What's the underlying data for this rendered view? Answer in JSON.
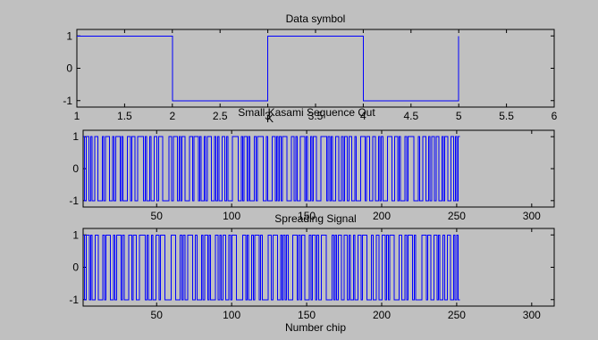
{
  "window": {
    "background": "#c0c0c0"
  },
  "chart_data": [
    {
      "type": "line",
      "step": true,
      "title": "Data symbol",
      "xlabel": "K",
      "ylabel": "",
      "xlim": [
        1,
        6
      ],
      "ylim": [
        -1.2,
        1.2
      ],
      "xticks": [
        1,
        1.5,
        2,
        2.5,
        3,
        3.5,
        4,
        4.5,
        5,
        5.5,
        6
      ],
      "xtick_labels": [
        "1",
        "1.5",
        "2",
        "2.5",
        "3",
        "3.5",
        "4",
        "4.5",
        "5",
        "5.5",
        "6"
      ],
      "yticks": [
        -1,
        0,
        1
      ],
      "ytick_labels": [
        "-1",
        "0",
        "1"
      ],
      "grid": false,
      "color": "#0000ff",
      "x": [
        1,
        2,
        2,
        3,
        3,
        4,
        4,
        5,
        5
      ],
      "y": [
        1,
        1,
        -1,
        -1,
        1,
        1,
        -1,
        -1,
        1
      ]
    },
    {
      "type": "line",
      "step": true,
      "title": "Small Kasami Sequence Out",
      "xlabel": "",
      "ylabel": "",
      "xlim": [
        1,
        315
      ],
      "ylim": [
        -1.2,
        1.2
      ],
      "xticks": [
        50,
        100,
        150,
        200,
        250,
        300
      ],
      "xtick_labels": [
        "50",
        "100",
        "150",
        "200",
        "250",
        "300"
      ],
      "yticks": [
        -1,
        0,
        1
      ],
      "ytick_labels": [
        "-1",
        "0",
        "1"
      ],
      "grid": false,
      "color": "#0000ff",
      "x_end": 252,
      "values": [
        1,
        -1,
        1,
        1,
        -1,
        1,
        -1,
        -1,
        1,
        1,
        -1,
        -1,
        -1,
        1,
        -1,
        1,
        1,
        1,
        -1,
        -1,
        1,
        -1,
        1,
        1,
        1,
        -1,
        1,
        -1,
        -1,
        -1,
        1,
        1,
        -1,
        1,
        1,
        -1,
        -1,
        1,
        1,
        1,
        1,
        -1,
        1,
        -1,
        -1,
        1,
        -1,
        -1,
        1,
        1,
        -1,
        1,
        1,
        1,
        -1,
        -1,
        -1,
        -1,
        1,
        1,
        -1,
        1,
        1,
        1,
        -1,
        1,
        -1,
        1,
        1,
        -1,
        -1,
        -1,
        1,
        1,
        -1,
        1,
        1,
        1,
        -1,
        1,
        -1,
        -1,
        1,
        -1,
        1,
        1,
        1,
        -1,
        -1,
        1,
        -1,
        1,
        -1,
        -1,
        1,
        1,
        -1,
        1,
        -1,
        -1,
        -1,
        1,
        1,
        1,
        1,
        -1,
        -1,
        1,
        -1,
        1,
        1,
        -1,
        1,
        -1,
        -1,
        -1,
        1,
        -1,
        1,
        1,
        1,
        1,
        -1,
        -1,
        1,
        -1,
        -1,
        -1,
        1,
        1,
        -1,
        1,
        -1,
        1,
        -1,
        1,
        1,
        1,
        -1,
        -1,
        -1,
        1,
        1,
        -1,
        1,
        -1,
        -1,
        1,
        1,
        1,
        -1,
        1,
        -1,
        -1,
        1,
        -1,
        1,
        1,
        -1,
        -1,
        -1,
        1,
        1,
        1,
        1,
        -1,
        1,
        -1,
        1,
        -1,
        -1,
        1,
        1,
        -1,
        -1,
        1,
        -1,
        1,
        1,
        -1,
        1,
        1,
        -1,
        -1,
        1,
        -1,
        -1,
        -1,
        1,
        1,
        1,
        -1,
        1,
        1,
        -1,
        -1,
        1,
        1,
        -1,
        -1,
        1,
        -1,
        1,
        -1,
        -1,
        -1,
        1,
        1,
        1,
        -1,
        -1,
        1,
        1,
        -1,
        1,
        -1,
        -1,
        -1,
        1,
        -1,
        1,
        1,
        1,
        1,
        -1,
        -1,
        -1,
        1,
        -1,
        -1,
        1,
        1,
        -1,
        -1,
        1,
        -1,
        1,
        1,
        -1,
        1,
        1,
        -1,
        -1,
        1,
        -1,
        1,
        1,
        -1,
        -1,
        1,
        1,
        -1,
        1,
        -1,
        1
      ]
    },
    {
      "type": "line",
      "step": true,
      "title": "Spreading Signal",
      "xlabel": "Number chip",
      "ylabel": "",
      "xlim": [
        1,
        315
      ],
      "ylim": [
        -1.2,
        1.2
      ],
      "xticks": [
        50,
        100,
        150,
        200,
        250,
        300
      ],
      "xtick_labels": [
        "50",
        "100",
        "150",
        "200",
        "250",
        "300"
      ],
      "yticks": [
        -1,
        0,
        1
      ],
      "ytick_labels": [
        "-1",
        "0",
        "1"
      ],
      "grid": false,
      "color": "#0000ff",
      "x_end": 252,
      "values": [
        1,
        -1,
        1,
        1,
        -1,
        1,
        -1,
        -1,
        1,
        1,
        -1,
        -1,
        -1,
        1,
        -1,
        1,
        1,
        1,
        -1,
        -1,
        1,
        -1,
        1,
        1,
        1,
        -1,
        1,
        -1,
        -1,
        -1,
        1,
        1,
        -1,
        1,
        1,
        -1,
        -1,
        1,
        1,
        1,
        1,
        -1,
        1,
        -1,
        -1,
        1,
        -1,
        -1,
        1,
        1,
        -1,
        1,
        1,
        1,
        -1,
        -1,
        -1,
        -1,
        1,
        1,
        1,
        -1,
        -1,
        -1,
        1,
        -1,
        1,
        -1,
        -1,
        1,
        1,
        1,
        -1,
        -1,
        1,
        -1,
        -1,
        -1,
        1,
        -1,
        1,
        1,
        -1,
        1,
        -1,
        -1,
        -1,
        1,
        1,
        -1,
        1,
        -1,
        1,
        1,
        -1,
        -1,
        1,
        -1,
        1,
        1,
        1,
        -1,
        -1,
        -1,
        -1,
        1,
        1,
        -1,
        1,
        -1,
        -1,
        1,
        -1,
        1,
        1,
        1,
        -1,
        1,
        -1,
        -1,
        -1,
        -1,
        1,
        1,
        -1,
        1,
        1,
        1,
        -1,
        -1,
        1,
        -1,
        1,
        -1,
        1,
        -1,
        -1,
        -1,
        1,
        1,
        1,
        -1,
        1,
        -1,
        1,
        1,
        -1,
        -1,
        -1,
        1,
        -1,
        1,
        1,
        -1,
        1,
        -1,
        -1,
        1,
        1,
        1,
        -1,
        -1,
        -1,
        -1,
        1,
        -1,
        1,
        -1,
        1,
        1,
        -1,
        -1,
        1,
        1,
        -1,
        1,
        -1,
        -1,
        1,
        -1,
        -1,
        1,
        1,
        -1,
        1,
        1,
        1,
        -1,
        -1,
        -1,
        1,
        -1,
        -1,
        1,
        1,
        -1,
        -1,
        1,
        1,
        -1,
        1,
        -1,
        1,
        1,
        1,
        -1,
        -1,
        -1,
        1,
        1,
        -1,
        -1,
        1,
        -1,
        1,
        1,
        1,
        -1,
        1,
        -1,
        -1,
        -1,
        -1,
        1,
        1,
        1,
        -1,
        1,
        1,
        -1,
        -1,
        1,
        1,
        -1,
        1,
        -1,
        -1,
        1,
        -1,
        -1,
        1,
        1,
        -1,
        -1,
        1,
        -1,
        1,
        -1
      ]
    }
  ]
}
